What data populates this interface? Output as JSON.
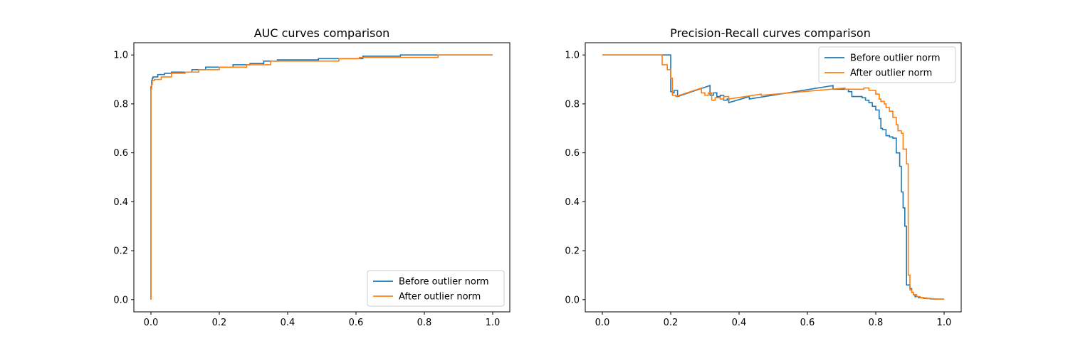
{
  "chart_data": [
    {
      "type": "line",
      "title": "AUC curves comparison",
      "xlabel": "",
      "ylabel": "",
      "xlim": [
        -0.05,
        1.05
      ],
      "ylim": [
        -0.05,
        1.05
      ],
      "xticks": [
        "0.0",
        "0.2",
        "0.4",
        "0.6",
        "0.8",
        "1.0"
      ],
      "yticks": [
        "0.0",
        "0.2",
        "0.4",
        "0.6",
        "0.8",
        "1.0"
      ],
      "grid": false,
      "legend_position": "lower-right",
      "series": [
        {
          "name": "Before outlier norm",
          "color": "#1f77b4",
          "x": [
            0.0,
            0.0,
            0.002,
            0.002,
            0.004,
            0.004,
            0.006,
            0.006,
            0.02,
            0.02,
            0.04,
            0.04,
            0.06,
            0.06,
            0.12,
            0.12,
            0.16,
            0.16,
            0.24,
            0.24,
            0.29,
            0.29,
            0.33,
            0.33,
            0.37,
            0.37,
            0.49,
            0.49,
            0.62,
            0.62,
            0.73,
            0.73,
            1.0
          ],
          "y": [
            0.0,
            0.87,
            0.87,
            0.895,
            0.895,
            0.905,
            0.905,
            0.91,
            0.91,
            0.92,
            0.92,
            0.925,
            0.925,
            0.93,
            0.93,
            0.94,
            0.94,
            0.95,
            0.95,
            0.96,
            0.96,
            0.965,
            0.965,
            0.975,
            0.975,
            0.98,
            0.98,
            0.985,
            0.985,
            0.995,
            0.995,
            1.0,
            1.0
          ]
        },
        {
          "name": "After outlier norm",
          "color": "#ff7f0e",
          "x": [
            0.0,
            0.0,
            0.002,
            0.002,
            0.004,
            0.004,
            0.01,
            0.01,
            0.03,
            0.03,
            0.06,
            0.06,
            0.1,
            0.1,
            0.14,
            0.14,
            0.2,
            0.2,
            0.28,
            0.28,
            0.35,
            0.35,
            0.55,
            0.55,
            0.61,
            0.61,
            0.84,
            0.84,
            1.0
          ],
          "y": [
            0.0,
            0.86,
            0.86,
            0.88,
            0.88,
            0.895,
            0.895,
            0.9,
            0.9,
            0.91,
            0.91,
            0.925,
            0.925,
            0.93,
            0.93,
            0.94,
            0.94,
            0.95,
            0.95,
            0.96,
            0.96,
            0.975,
            0.975,
            0.985,
            0.985,
            0.99,
            0.99,
            1.0,
            1.0
          ]
        }
      ]
    },
    {
      "type": "line",
      "title": "Precision-Recall curves comparison",
      "xlabel": "",
      "ylabel": "",
      "xlim": [
        -0.05,
        1.05
      ],
      "ylim": [
        -0.05,
        1.05
      ],
      "xticks": [
        "0.0",
        "0.2",
        "0.4",
        "0.6",
        "0.8",
        "1.0"
      ],
      "yticks": [
        "0.0",
        "0.2",
        "0.4",
        "0.6",
        "0.8",
        "1.0"
      ],
      "grid": false,
      "legend_position": "upper-right",
      "series": [
        {
          "name": "Before outlier norm",
          "color": "#1f77b4",
          "x": [
            0.0,
            0.2,
            0.2,
            0.205,
            0.205,
            0.21,
            0.21,
            0.22,
            0.22,
            0.315,
            0.315,
            0.325,
            0.325,
            0.335,
            0.335,
            0.345,
            0.345,
            0.355,
            0.355,
            0.365,
            0.365,
            0.37,
            0.37,
            0.43,
            0.43,
            0.675,
            0.675,
            0.72,
            0.72,
            0.73,
            0.73,
            0.76,
            0.76,
            0.77,
            0.77,
            0.78,
            0.78,
            0.79,
            0.79,
            0.8,
            0.8,
            0.81,
            0.81,
            0.815,
            0.815,
            0.82,
            0.82,
            0.83,
            0.83,
            0.84,
            0.84,
            0.85,
            0.85,
            0.86,
            0.86,
            0.87,
            0.87,
            0.875,
            0.875,
            0.88,
            0.88,
            0.885,
            0.885,
            0.89,
            0.89,
            0.9,
            0.9,
            0.905,
            0.905,
            0.91,
            0.91,
            0.915,
            0.915,
            0.925,
            0.925,
            0.94,
            0.94,
            0.96,
            0.96,
            1.0
          ],
          "y": [
            1.0,
            1.0,
            0.85,
            0.85,
            0.845,
            0.845,
            0.855,
            0.855,
            0.83,
            0.875,
            0.835,
            0.835,
            0.845,
            0.845,
            0.83,
            0.83,
            0.835,
            0.835,
            0.815,
            0.815,
            0.82,
            0.82,
            0.805,
            0.83,
            0.82,
            0.875,
            0.86,
            0.86,
            0.85,
            0.85,
            0.83,
            0.83,
            0.825,
            0.825,
            0.815,
            0.815,
            0.805,
            0.805,
            0.79,
            0.79,
            0.775,
            0.775,
            0.74,
            0.74,
            0.7,
            0.7,
            0.695,
            0.695,
            0.67,
            0.67,
            0.665,
            0.665,
            0.66,
            0.66,
            0.6,
            0.6,
            0.545,
            0.545,
            0.44,
            0.44,
            0.375,
            0.375,
            0.3,
            0.3,
            0.06,
            0.06,
            0.045,
            0.045,
            0.03,
            0.03,
            0.02,
            0.02,
            0.012,
            0.012,
            0.008,
            0.008,
            0.005,
            0.005,
            0.003,
            0.002
          ]
        },
        {
          "name": "After outlier norm",
          "color": "#ff7f0e",
          "x": [
            0.0,
            0.175,
            0.175,
            0.19,
            0.19,
            0.2,
            0.2,
            0.205,
            0.205,
            0.215,
            0.215,
            0.29,
            0.29,
            0.3,
            0.3,
            0.31,
            0.31,
            0.32,
            0.32,
            0.33,
            0.33,
            0.345,
            0.345,
            0.355,
            0.355,
            0.37,
            0.37,
            0.465,
            0.465,
            0.71,
            0.71,
            0.765,
            0.765,
            0.78,
            0.78,
            0.8,
            0.8,
            0.81,
            0.81,
            0.815,
            0.815,
            0.825,
            0.825,
            0.83,
            0.83,
            0.84,
            0.84,
            0.85,
            0.85,
            0.86,
            0.86,
            0.865,
            0.865,
            0.875,
            0.875,
            0.88,
            0.88,
            0.89,
            0.89,
            0.895,
            0.895,
            0.9,
            0.9,
            0.905,
            0.905,
            0.91,
            0.91,
            0.92,
            0.92,
            0.93,
            0.93,
            0.95,
            0.95,
            0.97,
            0.97,
            1.0
          ],
          "y": [
            1.0,
            1.0,
            0.96,
            0.96,
            0.94,
            0.94,
            0.905,
            0.905,
            0.835,
            0.835,
            0.83,
            0.865,
            0.845,
            0.845,
            0.835,
            0.835,
            0.845,
            0.845,
            0.815,
            0.815,
            0.825,
            0.825,
            0.82,
            0.82,
            0.83,
            0.83,
            0.82,
            0.84,
            0.835,
            0.865,
            0.86,
            0.86,
            0.865,
            0.865,
            0.855,
            0.855,
            0.84,
            0.84,
            0.82,
            0.82,
            0.81,
            0.81,
            0.8,
            0.8,
            0.785,
            0.785,
            0.77,
            0.77,
            0.745,
            0.745,
            0.715,
            0.715,
            0.69,
            0.69,
            0.68,
            0.68,
            0.615,
            0.615,
            0.555,
            0.555,
            0.1,
            0.1,
            0.04,
            0.04,
            0.03,
            0.03,
            0.02,
            0.02,
            0.012,
            0.012,
            0.007,
            0.007,
            0.004,
            0.004,
            0.002,
            0.002
          ]
        }
      ]
    }
  ]
}
